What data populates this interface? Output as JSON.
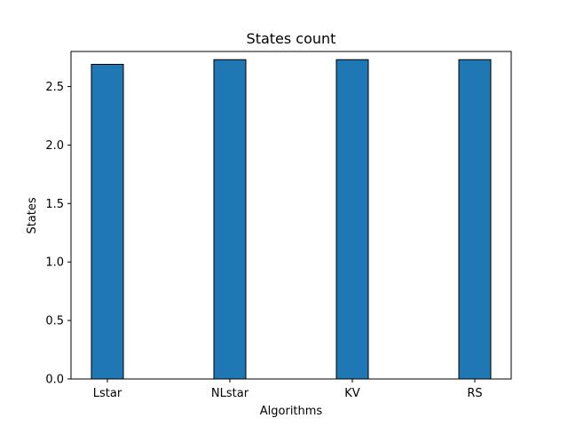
{
  "chart_data": {
    "type": "bar",
    "title": "States count",
    "xlabel": "Algorithms",
    "ylabel": "States",
    "categories": [
      "Lstar",
      "NLstar",
      "KV",
      "RS"
    ],
    "values": [
      2.69,
      2.73,
      2.73,
      2.73
    ],
    "ylim": [
      0,
      2.8
    ],
    "yticks": [
      0.0,
      0.5,
      1.0,
      1.5,
      2.0,
      2.5
    ],
    "ytick_labels": [
      "0.0",
      "0.5",
      "1.0",
      "1.5",
      "2.0",
      "2.5"
    ],
    "grid": false,
    "legend": "none",
    "colors": {
      "bar_fill": "#1f77b4",
      "bar_edge": "#000000"
    }
  }
}
